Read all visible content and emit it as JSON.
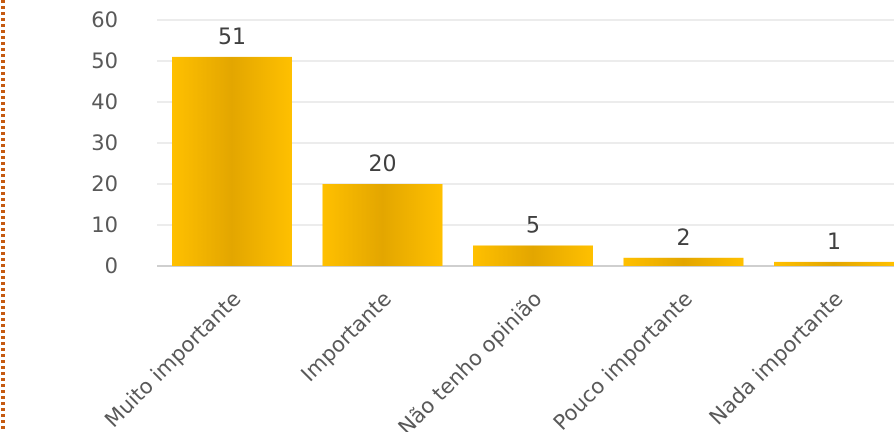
{
  "chart_data": {
    "type": "bar",
    "categories": [
      "Muito importante",
      "Importante",
      "Não tenho opinião",
      "Pouco importante",
      "Nada importante"
    ],
    "values": [
      51,
      20,
      5,
      2,
      1
    ],
    "ylim": [
      0,
      60
    ],
    "yticks": [
      0,
      10,
      20,
      30,
      40,
      50,
      60
    ],
    "grid": true,
    "data_labels": true,
    "colors": {
      "bar_light": "#FFC000",
      "bar_dark": "#E3A600",
      "grid": "#D9D9D9",
      "axis": "#BFBFBF",
      "border_dots": "#C55A11"
    }
  }
}
